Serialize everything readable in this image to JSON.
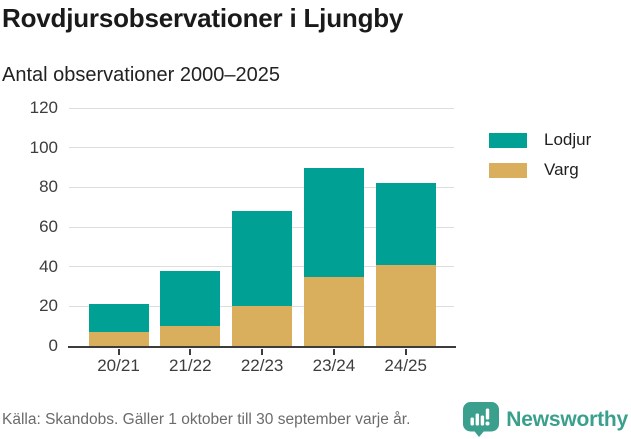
{
  "header": {
    "title": "Rovdjursobservationer i Ljungby",
    "subtitle": "Antal observationer 2000–2025"
  },
  "chart_data": {
    "type": "bar",
    "stacked": true,
    "title": "Rovdjursobservationer i Ljungby",
    "subtitle": "Antal observationer 2000–2025",
    "categories": [
      "20/21",
      "21/22",
      "22/23",
      "23/24",
      "24/25"
    ],
    "series": [
      {
        "name": "Varg",
        "color": "#D9AE5C",
        "values": [
          7,
          10,
          20,
          35,
          41
        ]
      },
      {
        "name": "Lodjur",
        "color": "#00A094",
        "values": [
          14,
          28,
          48,
          55,
          41
        ]
      }
    ],
    "totals": [
      21,
      38,
      68,
      90,
      82
    ],
    "xlabel": "",
    "ylabel": "",
    "ylim": [
      0,
      120
    ],
    "yticks": [
      0,
      20,
      40,
      60,
      80,
      100,
      120
    ],
    "grid": true,
    "legend_position": "right",
    "legend_order": [
      "Lodjur",
      "Varg"
    ]
  },
  "footer": {
    "source": "Källa: Skandobs. Gäller 1 oktober till 30 september varje år.",
    "brand": "Newsworthy"
  },
  "colors": {
    "lodjur": "#00A094",
    "varg": "#D9AE5C",
    "brand": "#3AA08D",
    "axis": "#3C3C3C",
    "grid": "#DDDDDD",
    "title_text": "#1A1A1A",
    "muted_text": "#6B6B6B"
  }
}
